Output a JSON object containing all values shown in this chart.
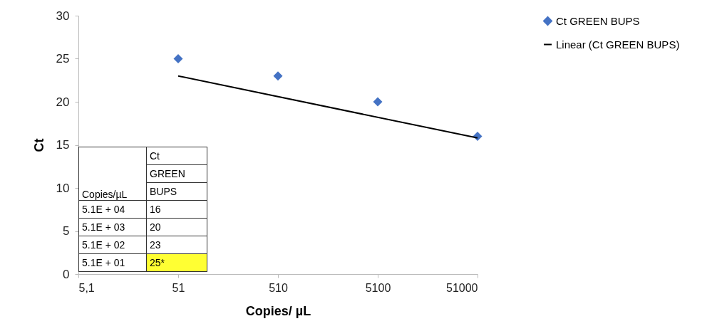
{
  "chart_data": {
    "type": "scatter",
    "xlabel": "Copies/ µL",
    "ylabel": "Ct",
    "xlim": [
      5.1,
      51000
    ],
    "xticks": [
      {
        "value": 5.1,
        "label": "5,1"
      },
      51,
      510,
      5100,
      51000
    ],
    "ylim": [
      0,
      30
    ],
    "yticks": [
      0,
      5,
      10,
      15,
      20,
      25,
      30
    ],
    "log": "x",
    "grid": false,
    "legend": "right",
    "series": [
      {
        "name": "Ct GREEN BUPS",
        "color": "#4472c4",
        "marker": "diamond",
        "x": [
          51,
          510,
          5100,
          51000
        ],
        "values": [
          25,
          23,
          20,
          16
        ]
      },
      {
        "name": "Linear (Ct GREEN BUPS)",
        "type": "line",
        "color": "#000000",
        "line_style": "solid",
        "x": [
          51,
          51000
        ],
        "values": [
          23,
          15.8
        ]
      }
    ],
    "annotations": [
      "Copies/µL",
      "Ct",
      "GREEN",
      "BUPS",
      "5.1E + 04",
      "16",
      "5.1E + 03",
      "20",
      "5.1E + 02",
      "23",
      "5.1E + 01",
      "25*"
    ]
  }
}
